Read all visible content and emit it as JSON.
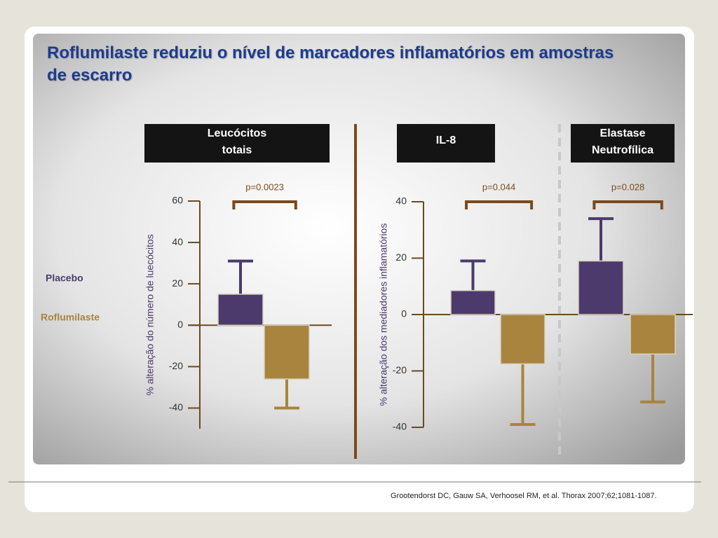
{
  "title": "Roflumilaste reduziu o nível de marcadores inflamatórios em amostras de escarro",
  "footnote": "Grootendorst DC, Gauw SA, Verhoosel RM, et al. Thorax 2007;62;1081-1087.",
  "chart_data": [
    {
      "type": "bar",
      "ylabel": "% alteração do número de luecócitos",
      "categories": [
        "Leucócitos totais"
      ],
      "p_values": [
        "p=0.0023"
      ],
      "ylim": [
        -50,
        60
      ],
      "yticks": [
        -40,
        -20,
        0,
        20,
        40,
        60
      ],
      "series": [
        {
          "name": "Placebo",
          "color": "#4b3a6b",
          "values": [
            15
          ],
          "errors": [
            16
          ]
        },
        {
          "name": "Roflumilaste",
          "color": "#a8843f",
          "values": [
            -26
          ],
          "errors": [
            14
          ]
        }
      ]
    },
    {
      "type": "bar",
      "ylabel": "% alteração dos mediadores inflamatórios",
      "categories": [
        "IL-8",
        "Elastase Neutrofílica"
      ],
      "p_values": [
        "p=0.044",
        "p=0.028"
      ],
      "ylim": [
        -40,
        40
      ],
      "yticks": [
        -40,
        -20,
        0,
        20,
        40
      ],
      "series": [
        {
          "color": "#4b3a6b",
          "values": [
            8.5,
            19
          ],
          "errors": [
            10.5,
            15
          ]
        },
        {
          "color": "#a8843f",
          "values": [
            -17.5,
            -14
          ],
          "errors": [
            21.5,
            17
          ]
        }
      ]
    }
  ]
}
